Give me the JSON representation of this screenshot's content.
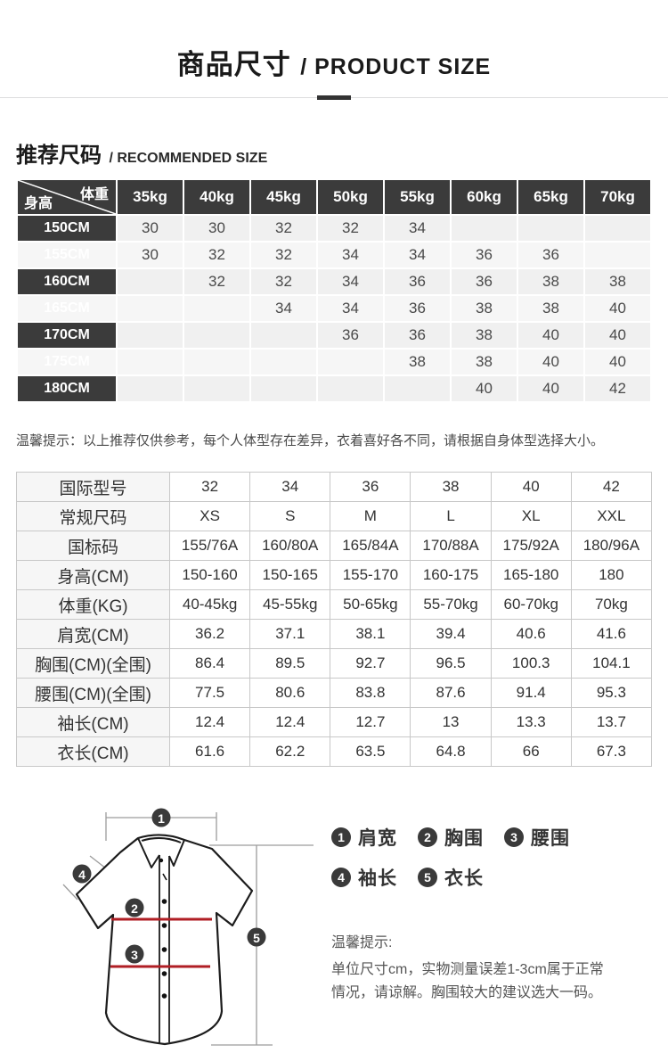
{
  "header": {
    "title_cn": "商品尺寸",
    "title_en": "/ PRODUCT SIZE"
  },
  "recommend": {
    "heading_cn": "推荐尺码",
    "heading_en": "/ RECOMMENDED SIZE",
    "corner": {
      "top_right": "体重",
      "bottom_left": "身高"
    },
    "weight_headers": [
      "35kg",
      "40kg",
      "45kg",
      "50kg",
      "55kg",
      "60kg",
      "65kg",
      "70kg"
    ],
    "rows": [
      {
        "height": "150CM",
        "values": [
          "30",
          "30",
          "32",
          "32",
          "34",
          "",
          "",
          ""
        ]
      },
      {
        "height": "155CM",
        "values": [
          "30",
          "32",
          "32",
          "34",
          "34",
          "36",
          "36",
          ""
        ]
      },
      {
        "height": "160CM",
        "values": [
          "",
          "32",
          "32",
          "34",
          "36",
          "36",
          "38",
          "38"
        ]
      },
      {
        "height": "165CM",
        "values": [
          "",
          "",
          "34",
          "34",
          "36",
          "38",
          "38",
          "40"
        ]
      },
      {
        "height": "170CM",
        "values": [
          "",
          "",
          "",
          "36",
          "36",
          "38",
          "40",
          "40"
        ]
      },
      {
        "height": "175CM",
        "values": [
          "",
          "",
          "",
          "",
          "38",
          "38",
          "40",
          "40"
        ]
      },
      {
        "height": "180CM",
        "values": [
          "",
          "",
          "",
          "",
          "",
          "40",
          "40",
          "42"
        ]
      }
    ],
    "note": "温馨提示：以上推荐仅供参考，每个人体型存在差异，衣着喜好各不同，请根据自身体型选择大小。"
  },
  "detail": {
    "rows": [
      {
        "label": "国际型号",
        "values": [
          "32",
          "34",
          "36",
          "38",
          "40",
          "42"
        ]
      },
      {
        "label": "常规尺码",
        "values": [
          "XS",
          "S",
          "M",
          "L",
          "XL",
          "XXL"
        ]
      },
      {
        "label": "国标码",
        "values": [
          "155/76A",
          "160/80A",
          "165/84A",
          "170/88A",
          "175/92A",
          "180/96A"
        ]
      },
      {
        "label": "身高(CM)",
        "values": [
          "150-160",
          "150-165",
          "155-170",
          "160-175",
          "165-180",
          "180"
        ]
      },
      {
        "label": "体重(KG)",
        "values": [
          "40-45kg",
          "45-55kg",
          "50-65kg",
          "55-70kg",
          "60-70kg",
          "70kg"
        ]
      },
      {
        "label": "肩宽(CM)",
        "values": [
          "36.2",
          "37.1",
          "38.1",
          "39.4",
          "40.6",
          "41.6"
        ]
      },
      {
        "label": "胸围(CM)(全围)",
        "values": [
          "86.4",
          "89.5",
          "92.7",
          "96.5",
          "100.3",
          "104.1"
        ]
      },
      {
        "label": "腰围(CM)(全围)",
        "values": [
          "77.5",
          "80.6",
          "83.8",
          "87.6",
          "91.4",
          "95.3"
        ]
      },
      {
        "label": "袖长(CM)",
        "values": [
          "12.4",
          "12.4",
          "12.7",
          "13",
          "13.3",
          "13.7"
        ]
      },
      {
        "label": "衣长(CM)",
        "values": [
          "61.6",
          "62.2",
          "63.5",
          "64.8",
          "66",
          "67.3"
        ]
      }
    ]
  },
  "measure": {
    "legend": [
      {
        "num": "1",
        "label": "肩宽"
      },
      {
        "num": "2",
        "label": "胸围"
      },
      {
        "num": "3",
        "label": "腰围"
      },
      {
        "num": "4",
        "label": "袖长"
      },
      {
        "num": "5",
        "label": "衣长"
      }
    ],
    "tip_title": "温馨提示:",
    "tip_line1": "单位尺寸cm，实物测量误差1-3cm属于正常",
    "tip_line2": "情况，请谅解。胸围较大的建议选大一码。"
  },
  "colors": {
    "table_header_dark": "#3b3b3b",
    "cell_light": "#f0f0f0",
    "measure_red_line": "#b01e24",
    "divider_gray": "#dddddd",
    "accent_bar": "#333333"
  }
}
